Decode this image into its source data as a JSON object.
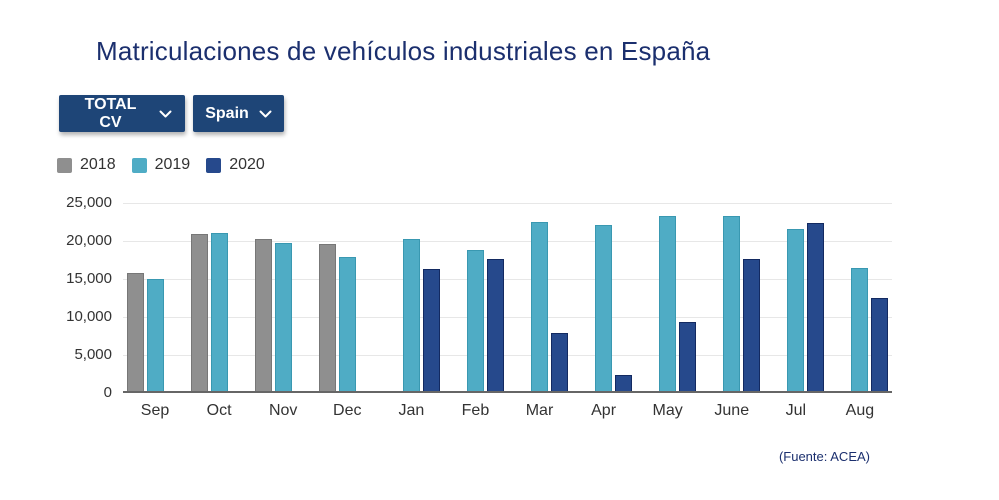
{
  "title": "Matriculaciones de vehículos industriales en España",
  "filters": {
    "vehicle_type_label": "TOTAL CV",
    "country_label": "Spain"
  },
  "legend": [
    {
      "label": "2018",
      "color": "#8f8f8f"
    },
    {
      "label": "2019",
      "color": "#4facc5"
    },
    {
      "label": "2020",
      "color": "#26498c"
    }
  ],
  "chart_data": {
    "type": "bar",
    "title": "Matriculaciones de vehículos industriales en España",
    "categories": [
      "Sep",
      "Oct",
      "Nov",
      "Dec",
      "Jan",
      "Feb",
      "Mar",
      "Apr",
      "May",
      "June",
      "Jul",
      "Aug"
    ],
    "series": [
      {
        "name": "2018",
        "color": "#8f8f8f",
        "border_color": "#777777",
        "values": [
          15750,
          20900,
          20250,
          19600,
          null,
          null,
          null,
          null,
          null,
          null,
          null,
          null
        ]
      },
      {
        "name": "2019",
        "color": "#4facc5",
        "border_color": "#3998b1",
        "values": [
          15050,
          21050,
          19800,
          17900,
          20250,
          18800,
          22550,
          22150,
          23350,
          23350,
          21600,
          16400
        ]
      },
      {
        "name": "2020",
        "color": "#26498c",
        "border_color": "#132a61",
        "values": [
          null,
          null,
          null,
          null,
          16300,
          17600,
          7850,
          2400,
          9300,
          17650,
          22350,
          12550
        ]
      }
    ],
    "xlabel": "",
    "ylabel": "",
    "ylim": [
      0,
      25000
    ],
    "ytick_step": 5000,
    "ytick_labels": [
      "0",
      "5,000",
      "10,000",
      "15,000",
      "20,000",
      "25,000"
    ],
    "grid": true,
    "legend_position": "top-left"
  },
  "footer": {
    "source": "(Fuente: ACEA)"
  },
  "colors": {
    "accent_navy": "#1e4577",
    "title_navy": "#1b2f6e",
    "gridline": "#e7e7e7",
    "axis": "#666666"
  }
}
